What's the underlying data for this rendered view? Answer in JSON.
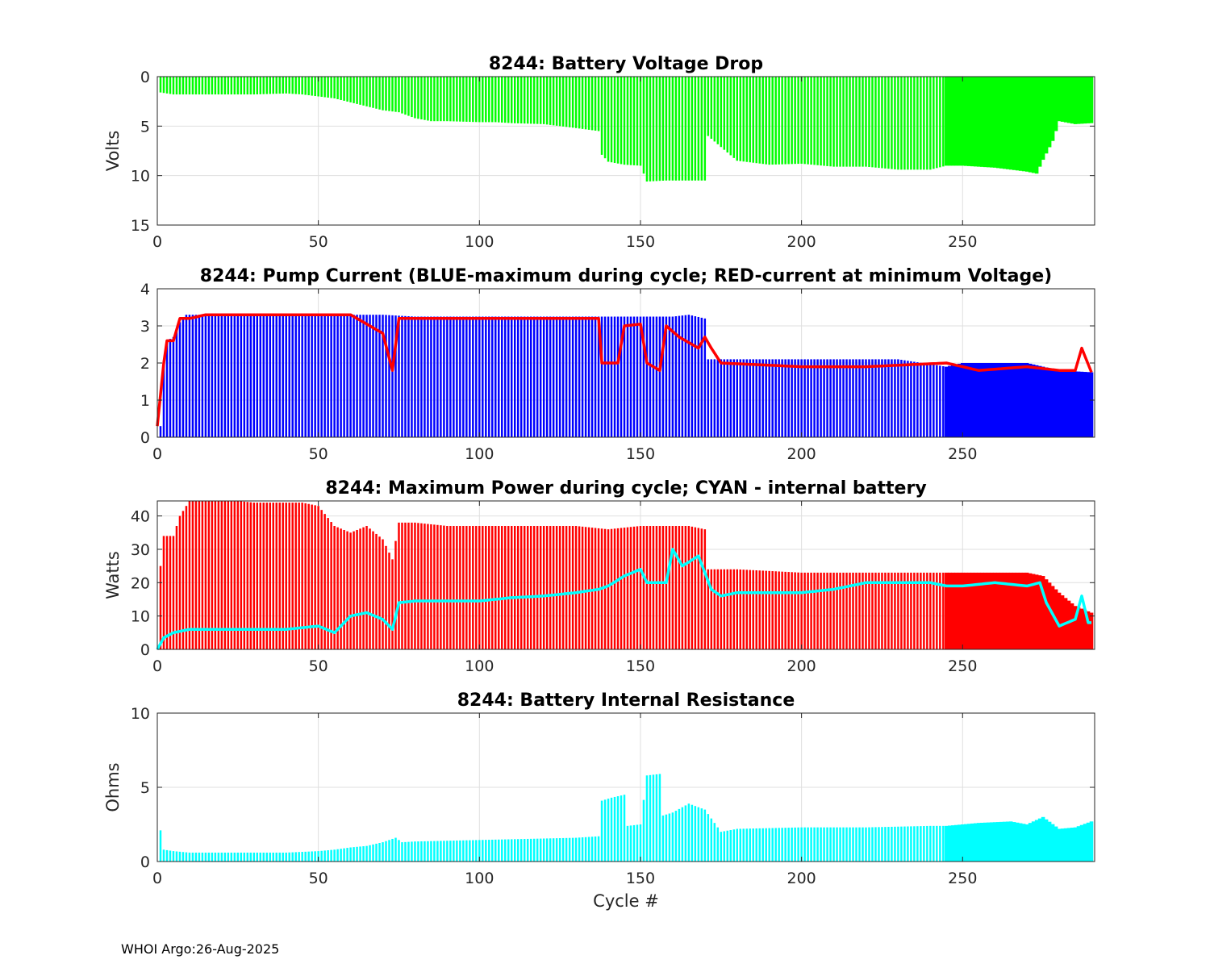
{
  "footer": "WHOI Argo:26-Aug-2025",
  "chart_data": [
    {
      "type": "bar",
      "title": "8244: Battery Voltage Drop",
      "ylabel": "Volts",
      "xlabel": "",
      "xlim": [
        0,
        291
      ],
      "ylim": [
        0,
        15
      ],
      "y_reversed": true,
      "xticks": [
        0,
        50,
        100,
        150,
        200,
        250
      ],
      "yticks": [
        0,
        5,
        10,
        15
      ],
      "grid": true,
      "bar_color": "#00ff00",
      "key_points": [
        [
          1,
          1.6
        ],
        [
          3,
          1.7
        ],
        [
          5,
          1.8
        ],
        [
          10,
          1.8
        ],
        [
          20,
          1.8
        ],
        [
          30,
          1.8
        ],
        [
          40,
          1.7
        ],
        [
          45,
          1.8
        ],
        [
          50,
          2.0
        ],
        [
          55,
          2.2
        ],
        [
          60,
          2.6
        ],
        [
          65,
          3.0
        ],
        [
          70,
          3.4
        ],
        [
          75,
          3.6
        ],
        [
          80,
          4.2
        ],
        [
          85,
          4.5
        ],
        [
          90,
          4.5
        ],
        [
          100,
          4.6
        ],
        [
          105,
          4.6
        ],
        [
          110,
          4.7
        ],
        [
          120,
          4.8
        ],
        [
          130,
          5.2
        ],
        [
          137,
          5.5
        ],
        [
          138,
          7.9
        ],
        [
          140,
          8.6
        ],
        [
          145,
          8.9
        ],
        [
          150,
          9.0
        ],
        [
          152,
          10.6
        ],
        [
          158,
          10.5
        ],
        [
          165,
          10.5
        ],
        [
          170,
          10.5
        ],
        [
          171,
          6.0
        ],
        [
          180,
          8.5
        ],
        [
          190,
          8.9
        ],
        [
          200,
          8.8
        ],
        [
          210,
          9.1
        ],
        [
          220,
          9.1
        ],
        [
          230,
          9.4
        ],
        [
          240,
          9.4
        ],
        [
          245,
          9.0
        ],
        [
          250,
          9.0
        ],
        [
          260,
          9.2
        ],
        [
          270,
          9.6
        ],
        [
          273,
          9.8
        ],
        [
          275,
          8.4
        ],
        [
          278,
          6.5
        ],
        [
          280,
          4.5
        ],
        [
          285,
          4.8
        ],
        [
          290,
          4.7
        ]
      ],
      "dense_from_cycle": 245
    },
    {
      "type": "bar+line",
      "title": "8244: Pump Current (BLUE-maximum during cycle; RED-current at minimum Voltage)",
      "ylabel": "",
      "xlabel": "",
      "xlim": [
        0,
        291
      ],
      "ylim": [
        0,
        4
      ],
      "xticks": [
        0,
        50,
        100,
        150,
        200,
        250
      ],
      "yticks": [
        0,
        1,
        2,
        3,
        4
      ],
      "grid": true,
      "series": [
        {
          "name": "maximum during cycle",
          "style": "bar",
          "color": "#0000ff",
          "key_points": [
            [
              1,
              0.3
            ],
            [
              2,
              2.0
            ],
            [
              3,
              2.6
            ],
            [
              5,
              2.7
            ],
            [
              7,
              3.1
            ],
            [
              9,
              3.3
            ],
            [
              12,
              3.3
            ],
            [
              20,
              3.3
            ],
            [
              30,
              3.3
            ],
            [
              40,
              3.3
            ],
            [
              50,
              3.3
            ],
            [
              60,
              3.3
            ],
            [
              70,
              3.3
            ],
            [
              80,
              3.25
            ],
            [
              90,
              3.25
            ],
            [
              100,
              3.25
            ],
            [
              110,
              3.25
            ],
            [
              120,
              3.25
            ],
            [
              130,
              3.25
            ],
            [
              140,
              3.25
            ],
            [
              150,
              3.25
            ],
            [
              160,
              3.25
            ],
            [
              165,
              3.3
            ],
            [
              170,
              3.2
            ],
            [
              171,
              2.1
            ],
            [
              180,
              2.1
            ],
            [
              200,
              2.1
            ],
            [
              230,
              2.1
            ],
            [
              245,
              1.9
            ],
            [
              250,
              2.0
            ],
            [
              270,
              2.0
            ],
            [
              280,
              1.8
            ],
            [
              290,
              1.75
            ]
          ]
        },
        {
          "name": "current at minimum Voltage",
          "style": "line",
          "color": "#ff0000",
          "key_points": [
            [
              0,
              0.3
            ],
            [
              2,
              2.0
            ],
            [
              3,
              2.6
            ],
            [
              5,
              2.6
            ],
            [
              7,
              3.2
            ],
            [
              10,
              3.2
            ],
            [
              15,
              3.3
            ],
            [
              25,
              3.3
            ],
            [
              30,
              3.3
            ],
            [
              40,
              3.3
            ],
            [
              50,
              3.3
            ],
            [
              60,
              3.3
            ],
            [
              66,
              3.0
            ],
            [
              70,
              2.8
            ],
            [
              73,
              1.8
            ],
            [
              75,
              3.2
            ],
            [
              80,
              3.2
            ],
            [
              90,
              3.2
            ],
            [
              100,
              3.2
            ],
            [
              110,
              3.2
            ],
            [
              120,
              3.2
            ],
            [
              137,
              3.2
            ],
            [
              138,
              2.0
            ],
            [
              143,
              2.0
            ],
            [
              145,
              3.0
            ],
            [
              150,
              3.05
            ],
            [
              152,
              2.0
            ],
            [
              156,
              1.8
            ],
            [
              158,
              3.0
            ],
            [
              162,
              2.7
            ],
            [
              168,
              2.4
            ],
            [
              170,
              2.7
            ],
            [
              172,
              2.4
            ],
            [
              175,
              2.0
            ],
            [
              200,
              1.9
            ],
            [
              220,
              1.9
            ],
            [
              245,
              2.0
            ],
            [
              255,
              1.8
            ],
            [
              270,
              1.9
            ],
            [
              280,
              1.8
            ],
            [
              285,
              1.8
            ],
            [
              287,
              2.4
            ],
            [
              290,
              1.75
            ]
          ]
        }
      ]
    },
    {
      "type": "bar+line",
      "title": "8244: Maximum Power during cycle; CYAN - internal battery",
      "ylabel": "Watts",
      "xlabel": "",
      "xlim": [
        0,
        291
      ],
      "ylim": [
        0,
        44.5
      ],
      "xticks": [
        0,
        50,
        100,
        150,
        200,
        250
      ],
      "yticks": [
        0,
        10,
        20,
        30,
        40
      ],
      "grid": true,
      "series": [
        {
          "name": "maximum power",
          "style": "bar",
          "color": "#ff0000",
          "key_points": [
            [
              1,
              25
            ],
            [
              2,
              34
            ],
            [
              5,
              34
            ],
            [
              7,
              40
            ],
            [
              10,
              44.5
            ],
            [
              25,
              44.5
            ],
            [
              30,
              44
            ],
            [
              40,
              44
            ],
            [
              45,
              44
            ],
            [
              50,
              43
            ],
            [
              55,
              37
            ],
            [
              60,
              35
            ],
            [
              65,
              37
            ],
            [
              70,
              33
            ],
            [
              73,
              27
            ],
            [
              75,
              38
            ],
            [
              80,
              38
            ],
            [
              90,
              37
            ],
            [
              100,
              37
            ],
            [
              110,
              37
            ],
            [
              120,
              37
            ],
            [
              130,
              37
            ],
            [
              140,
              36
            ],
            [
              150,
              37
            ],
            [
              155,
              37
            ],
            [
              160,
              37
            ],
            [
              165,
              37
            ],
            [
              170,
              36
            ],
            [
              171,
              24
            ],
            [
              180,
              24
            ],
            [
              200,
              23
            ],
            [
              220,
              23
            ],
            [
              240,
              23
            ],
            [
              245,
              23
            ],
            [
              260,
              23
            ],
            [
              270,
              23
            ],
            [
              275,
              22
            ],
            [
              280,
              17
            ],
            [
              285,
              13
            ],
            [
              290,
              11
            ]
          ]
        },
        {
          "name": "internal battery",
          "style": "line",
          "color": "#00ffff",
          "key_points": [
            [
              0,
              0
            ],
            [
              2,
              3.5
            ],
            [
              5,
              5
            ],
            [
              10,
              6
            ],
            [
              20,
              6
            ],
            [
              30,
              6
            ],
            [
              40,
              6
            ],
            [
              50,
              7
            ],
            [
              55,
              5
            ],
            [
              60,
              10
            ],
            [
              65,
              11
            ],
            [
              70,
              9
            ],
            [
              73,
              6
            ],
            [
              75,
              14
            ],
            [
              80,
              14.5
            ],
            [
              90,
              14.5
            ],
            [
              100,
              14.5
            ],
            [
              105,
              15
            ],
            [
              110,
              15.5
            ],
            [
              120,
              16
            ],
            [
              130,
              17
            ],
            [
              137,
              18
            ],
            [
              140,
              19
            ],
            [
              145,
              22
            ],
            [
              150,
              24
            ],
            [
              152,
              20
            ],
            [
              158,
              20
            ],
            [
              160,
              30
            ],
            [
              163,
              25
            ],
            [
              168,
              28
            ],
            [
              172,
              18
            ],
            [
              175,
              16
            ],
            [
              180,
              17
            ],
            [
              200,
              17
            ],
            [
              210,
              18
            ],
            [
              220,
              20
            ],
            [
              230,
              20
            ],
            [
              240,
              20
            ],
            [
              245,
              19
            ],
            [
              250,
              19
            ],
            [
              260,
              20
            ],
            [
              270,
              19
            ],
            [
              274,
              20
            ],
            [
              276,
              14
            ],
            [
              280,
              7
            ],
            [
              285,
              9
            ],
            [
              287,
              16
            ],
            [
              289,
              8
            ],
            [
              290,
              8
            ]
          ]
        }
      ]
    },
    {
      "type": "bar",
      "title": "8244: Battery Internal Resistance",
      "ylabel": "Ohms",
      "xlabel": "Cycle #",
      "xlim": [
        0,
        291
      ],
      "ylim": [
        0,
        10
      ],
      "xticks": [
        0,
        50,
        100,
        150,
        200,
        250
      ],
      "yticks": [
        0,
        5,
        10
      ],
      "grid": true,
      "bar_color": "#00ffff",
      "key_points": [
        [
          1,
          2.1
        ],
        [
          2,
          0.8
        ],
        [
          5,
          0.7
        ],
        [
          10,
          0.6
        ],
        [
          20,
          0.6
        ],
        [
          30,
          0.6
        ],
        [
          40,
          0.6
        ],
        [
          50,
          0.7
        ],
        [
          55,
          0.8
        ],
        [
          60,
          0.95
        ],
        [
          65,
          1.05
        ],
        [
          70,
          1.3
        ],
        [
          74,
          1.6
        ],
        [
          76,
          1.3
        ],
        [
          80,
          1.35
        ],
        [
          90,
          1.4
        ],
        [
          100,
          1.45
        ],
        [
          110,
          1.5
        ],
        [
          120,
          1.55
        ],
        [
          130,
          1.6
        ],
        [
          137,
          1.7
        ],
        [
          138,
          4.1
        ],
        [
          141,
          4.3
        ],
        [
          145,
          4.5
        ],
        [
          146,
          2.4
        ],
        [
          150,
          2.5
        ],
        [
          152,
          5.8
        ],
        [
          156,
          5.9
        ],
        [
          157,
          3.1
        ],
        [
          160,
          3.3
        ],
        [
          165,
          3.9
        ],
        [
          170,
          3.5
        ],
        [
          175,
          2.0
        ],
        [
          180,
          2.2
        ],
        [
          200,
          2.3
        ],
        [
          220,
          2.3
        ],
        [
          240,
          2.4
        ],
        [
          245,
          2.4
        ],
        [
          255,
          2.6
        ],
        [
          265,
          2.7
        ],
        [
          270,
          2.5
        ],
        [
          275,
          3.0
        ],
        [
          280,
          2.2
        ],
        [
          285,
          2.3
        ],
        [
          290,
          2.7
        ]
      ],
      "dense_from_cycle": 245
    }
  ]
}
